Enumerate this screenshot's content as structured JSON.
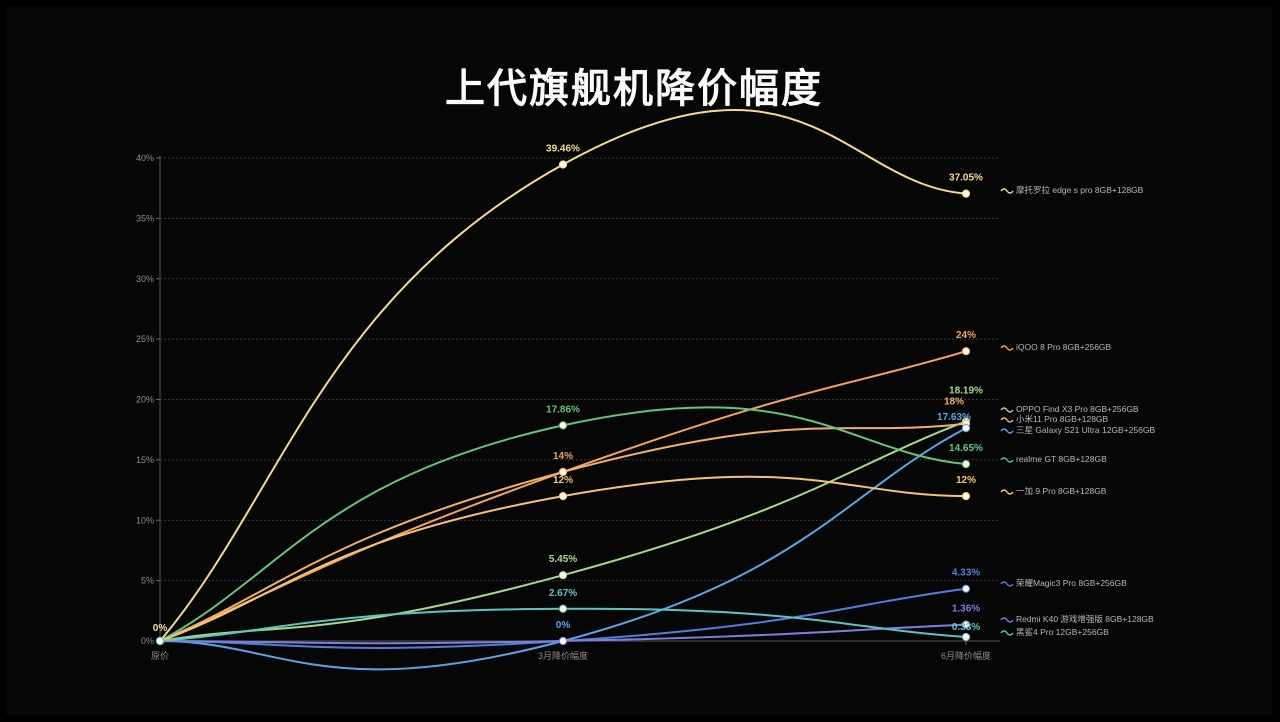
{
  "title": "上代旗舰机降价幅度",
  "chart_data": {
    "type": "line",
    "categories": [
      "原价",
      "3月降价幅度",
      "6月降价幅度"
    ],
    "ylim": [
      0,
      40
    ],
    "yticks": [
      "0%",
      "5%",
      "10%",
      "15%",
      "20%",
      "25%",
      "30%",
      "35%",
      "40%"
    ],
    "grid": true,
    "legend_position": "right",
    "series": [
      {
        "name": "摩托罗拉 edge s pro 8GB+128GB",
        "values": [
          0,
          39.46,
          37.05
        ],
        "labels": [
          "0%",
          "39.46%",
          "37.05%"
        ],
        "color": "#f3dc8e"
      },
      {
        "name": "iQOO 8 Pro 8GB+256GB",
        "values": [
          0,
          14,
          24
        ],
        "labels": [
          "",
          "14%",
          "24%"
        ],
        "color": "#f4a35a"
      },
      {
        "name": "OPPO Find X3 Pro 8GB+256GB",
        "values": [
          0,
          5.45,
          18.19
        ],
        "labels": [
          "",
          "5.45%",
          "18.19%"
        ],
        "color": "#a7d98a"
      },
      {
        "name": "小米11 Pro 8GB+128GB",
        "values": [
          0,
          14,
          18
        ],
        "labels": [
          "",
          "",
          "18%"
        ],
        "color": "#f2b166"
      },
      {
        "name": "三星 Galaxy S21 Ultra 12GB+256GB",
        "values": [
          0,
          0,
          17.63
        ],
        "labels": [
          "",
          "0%",
          "17.63%"
        ],
        "color": "#5aa5e8"
      },
      {
        "name": "realme GT 8GB+128GB",
        "values": [
          0,
          17.86,
          14.65
        ],
        "labels": [
          "",
          "17.86%",
          "14.65%"
        ],
        "color": "#64c47c"
      },
      {
        "name": "一加 9 Pro 8GB+128GB",
        "values": [
          0,
          12,
          12
        ],
        "labels": [
          "",
          "12%",
          "12%"
        ],
        "color": "#f6c470"
      },
      {
        "name": "荣耀Magic3 Pro 8GB+256GB",
        "values": [
          0,
          0,
          4.33
        ],
        "labels": [
          "",
          "",
          "4.33%"
        ],
        "color": "#4f7fd8"
      },
      {
        "name": "Redmi K40 游戏增强版 8GB+128GB",
        "values": [
          0,
          0,
          1.36
        ],
        "labels": [
          "",
          "",
          "1.36%"
        ],
        "color": "#7d7ee0"
      },
      {
        "name": "黑鲨4 Pro 12GB+256GB",
        "values": [
          0,
          2.67,
          0.33
        ],
        "labels": [
          "",
          "2.67%",
          "0.33%"
        ],
        "color": "#58c7c2"
      }
    ]
  }
}
